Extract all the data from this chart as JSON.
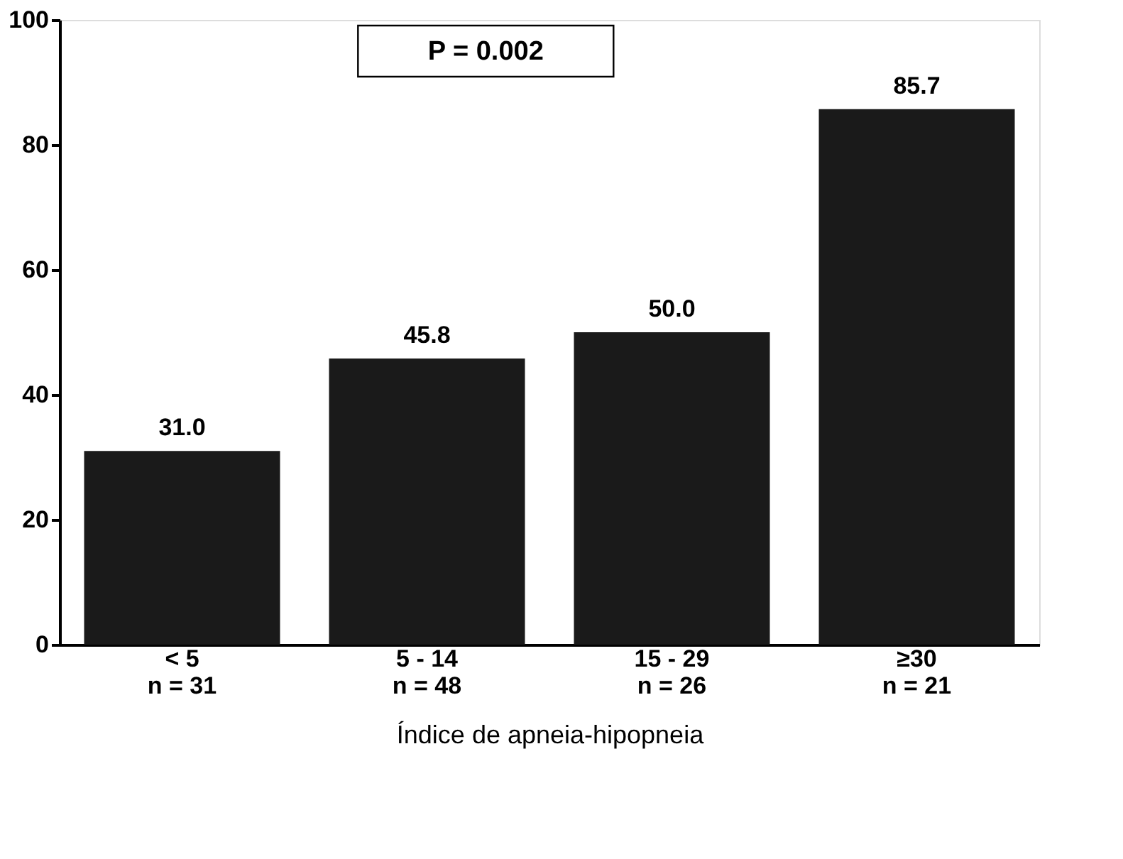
{
  "chart_data": {
    "type": "bar",
    "categories": [
      "< 5\nn = 31",
      "5 - 14\nn = 48",
      "15 - 29\nn = 26",
      "≥30\nn = 21"
    ],
    "values": [
      31.0,
      45.8,
      50.0,
      85.7
    ],
    "value_labels": [
      "31.0",
      "45.8",
      "50.0",
      "85.7"
    ],
    "color": "#1a1a1a",
    "xlabel": "Índice de apneia-hipopneia",
    "ylim": [
      0,
      100
    ],
    "yticks": [
      0,
      20,
      40,
      60,
      80,
      100
    ],
    "grid": false,
    "annotations": [
      "P = 0.002"
    ]
  }
}
